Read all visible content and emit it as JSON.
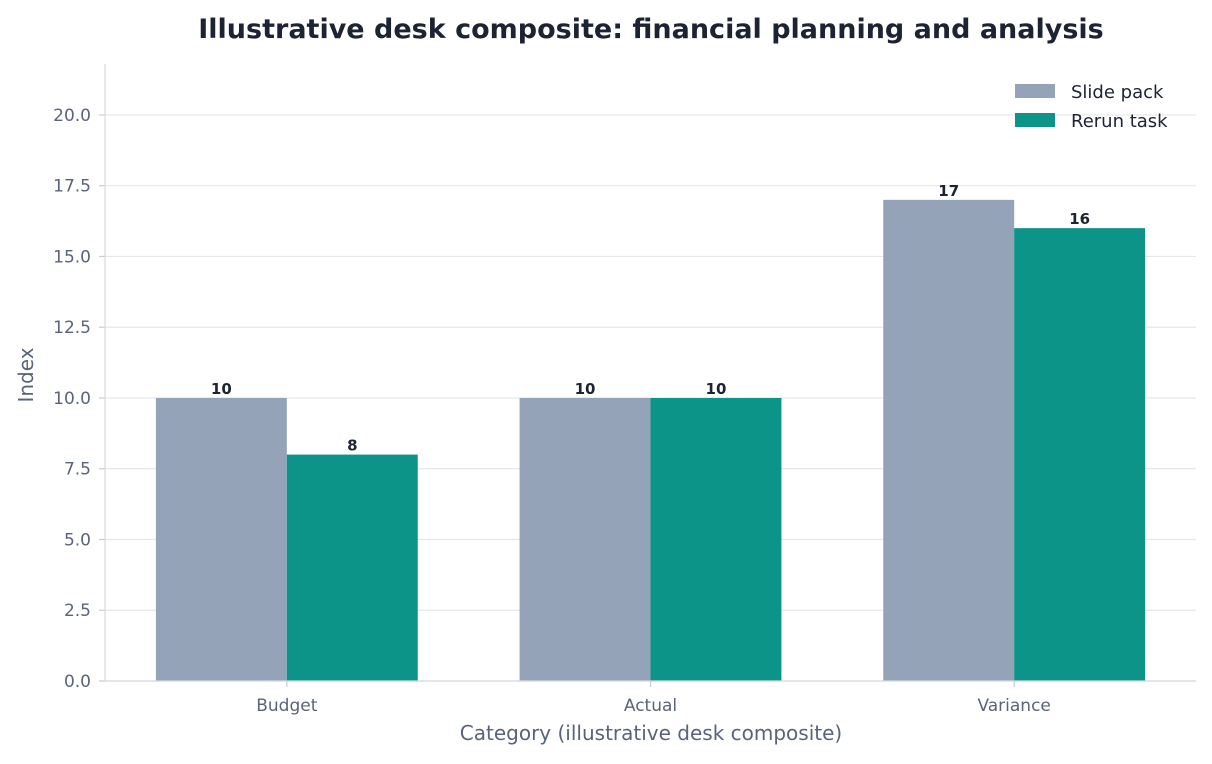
{
  "chart_data": {
    "type": "bar",
    "title": "Illustrative desk composite: financial planning and analysis",
    "xlabel": "Category (illustrative desk composite)",
    "ylabel": "Index",
    "categories": [
      "Budget",
      "Actual",
      "Variance"
    ],
    "series": [
      {
        "name": "Slide pack",
        "values": [
          10,
          10,
          17
        ],
        "color": "#94a3b8"
      },
      {
        "name": "Rerun task",
        "values": [
          8,
          10,
          16
        ],
        "color": "#0d9488"
      }
    ],
    "ylim": [
      0,
      21.8
    ],
    "yticks": [
      "0.0",
      "2.5",
      "5.0",
      "7.5",
      "10.0",
      "12.5",
      "15.0",
      "17.5",
      "20.0"
    ],
    "grid": true,
    "legend_position": "top-right"
  }
}
